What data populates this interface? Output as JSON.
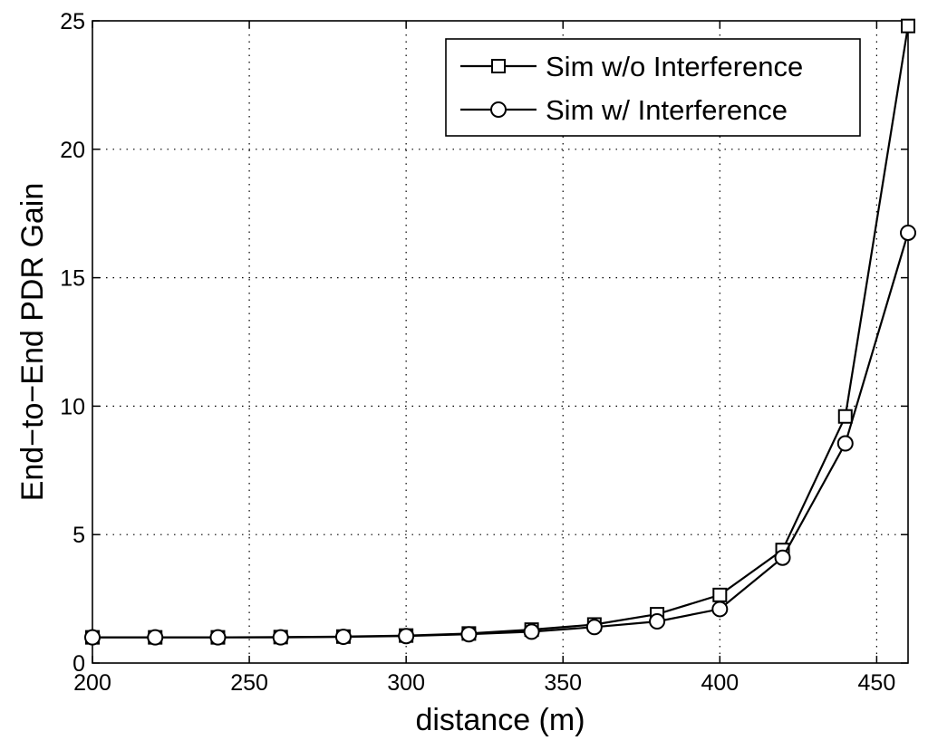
{
  "chart_data": {
    "type": "line",
    "title": "",
    "xlabel": "distance (m)",
    "ylabel": "End−to−End PDR Gain",
    "xlim": [
      200,
      460
    ],
    "ylim": [
      0,
      25
    ],
    "xticks": [
      200,
      250,
      300,
      350,
      400,
      450
    ],
    "yticks": [
      0,
      5,
      10,
      15,
      20,
      25
    ],
    "grid": true,
    "legend_position": "top-right",
    "x": [
      200,
      220,
      240,
      260,
      280,
      300,
      320,
      340,
      360,
      380,
      400,
      420,
      440,
      460
    ],
    "series": [
      {
        "name": "Sim w/o Interference",
        "marker": "square",
        "values": [
          1.0,
          1.0,
          1.0,
          1.01,
          1.03,
          1.07,
          1.15,
          1.3,
          1.5,
          1.9,
          2.65,
          4.4,
          9.6,
          24.8
        ]
      },
      {
        "name": "Sim w/ Interference",
        "marker": "circle",
        "values": [
          1.0,
          1.0,
          1.0,
          1.0,
          1.02,
          1.05,
          1.12,
          1.22,
          1.4,
          1.62,
          2.1,
          4.1,
          8.55,
          16.75
        ]
      }
    ]
  },
  "colors": {
    "line": "#000000",
    "marker_fill": "#ffffff",
    "background": "#ffffff"
  }
}
